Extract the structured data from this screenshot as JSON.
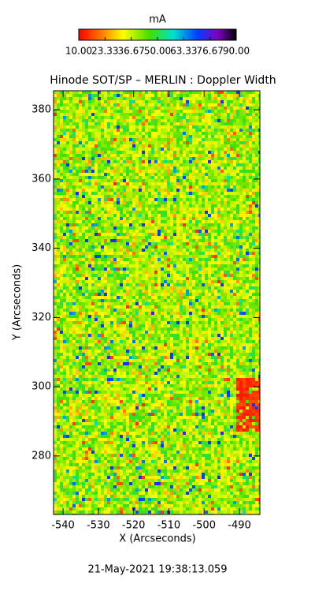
{
  "chart_data": {
    "type": "heatmap",
    "title": "Hinode SOT/SP – MERLIN : Doppler Width",
    "x_label": "X (Arcseconds)",
    "y_label": "Y (Arcseconds)",
    "xlim": [
      -542.7,
      -484.2
    ],
    "xticks": [
      -540,
      -530,
      -520,
      -510,
      -500,
      -490
    ],
    "ylim": [
      263.1,
      385.5
    ],
    "yticks": [
      280,
      300,
      320,
      340,
      360,
      380
    ],
    "colorbar": {
      "label": "mA",
      "lim": [
        10,
        90
      ],
      "ticks": [
        {
          "value": 10,
          "label": "10.00"
        },
        {
          "value": 23.33,
          "label": "23.33"
        },
        {
          "value": 36.67,
          "label": "36.67"
        },
        {
          "value": 50,
          "label": "50.00"
        },
        {
          "value": 63.33,
          "label": "63.33"
        },
        {
          "value": 76.67,
          "label": "76.67"
        },
        {
          "value": 90,
          "label": "90.00"
        }
      ]
    },
    "timestamp": "21-May-2021 19:38:13.059"
  }
}
